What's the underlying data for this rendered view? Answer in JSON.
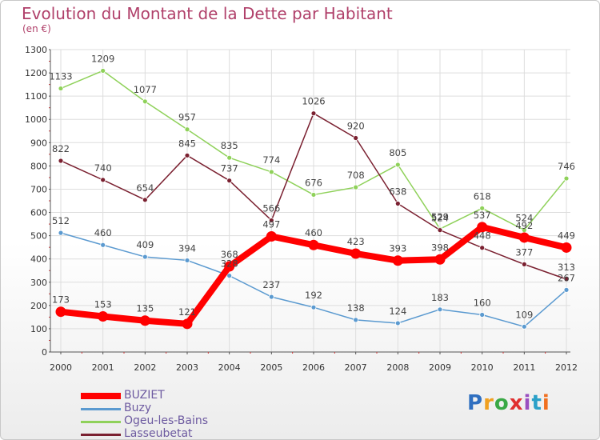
{
  "chart_data": {
    "type": "line",
    "title": "Evolution du Montant de la Dette par Habitant",
    "subtitle": "(en €)",
    "xlabel": "",
    "ylabel": "",
    "ylim": [
      0,
      1300
    ],
    "yticks": [
      0,
      100,
      200,
      300,
      400,
      500,
      600,
      700,
      800,
      900,
      1000,
      1100,
      1200,
      1300
    ],
    "grid": true,
    "legend_position": "bottom-left",
    "categories": [
      "2000",
      "2001",
      "2002",
      "2003",
      "2004",
      "2005",
      "2006",
      "2007",
      "2008",
      "2009",
      "2010",
      "2011",
      "2012"
    ],
    "series": [
      {
        "name": "Ogeu-les-Bains",
        "color": "#8fd15a",
        "values": [
          1133,
          1209,
          1077,
          957,
          835,
          774,
          676,
          708,
          805,
          529,
          618,
          524,
          746
        ]
      },
      {
        "name": "Lasseubetat",
        "color": "#7a2030",
        "values": [
          822,
          740,
          654,
          845,
          737,
          566,
          1026,
          920,
          638,
          524,
          448,
          377,
          313
        ]
      },
      {
        "name": "Buzy",
        "color": "#5b9ad0",
        "values": [
          512,
          460,
          409,
          394,
          328,
          237,
          192,
          138,
          124,
          183,
          160,
          109,
          267
        ]
      },
      {
        "name": "BUZIET",
        "color": "#ff0000",
        "values": [
          173,
          153,
          135,
          121,
          368,
          497,
          460,
          423,
          393,
          398,
          537,
          492,
          449
        ]
      }
    ]
  },
  "legend": [
    {
      "name": "BUZIET",
      "color": "#ff0000"
    },
    {
      "name": "Buzy",
      "color": "#5b9ad0"
    },
    {
      "name": "Ogeu-les-Bains",
      "color": "#8fd15a"
    },
    {
      "name": "Lasseubetat",
      "color": "#7a2030"
    }
  ],
  "logo": {
    "text": "Proxiti"
  }
}
